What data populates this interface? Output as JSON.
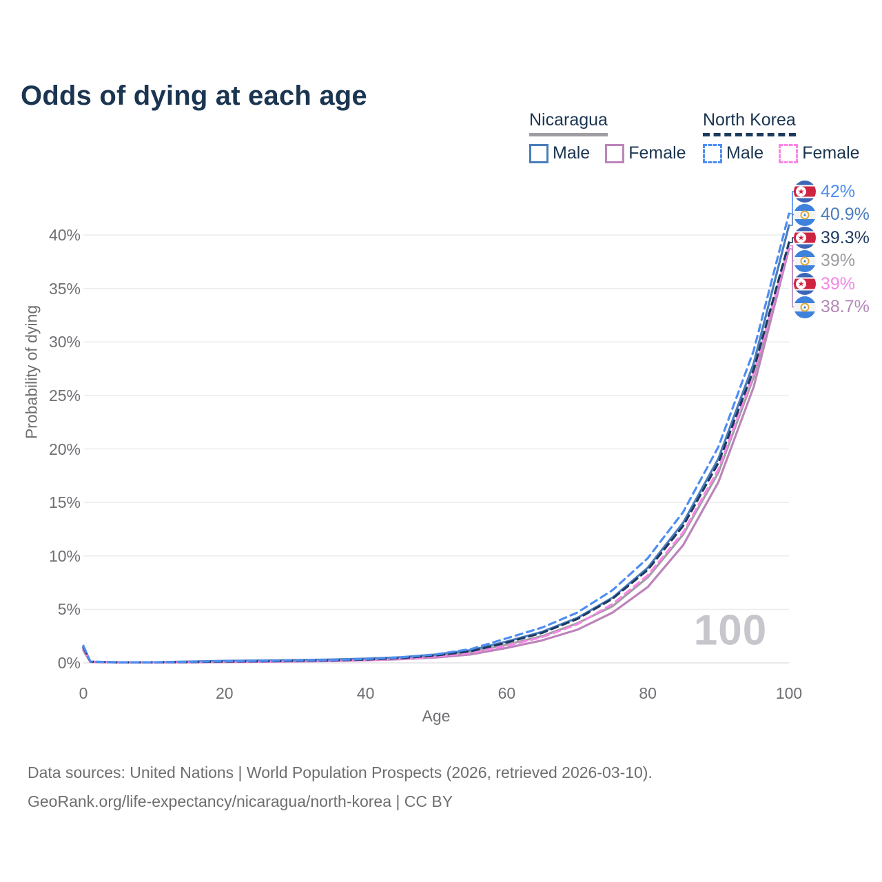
{
  "header": {
    "title": "Odds of dying at each age"
  },
  "legend": {
    "groups": [
      {
        "country": "Nicaragua",
        "line_style": "solid",
        "items": [
          {
            "label": "Male",
            "color": "#4a7dba"
          },
          {
            "label": "Female",
            "color": "#bc84ba"
          }
        ]
      },
      {
        "country": "North Korea",
        "line_style": "dashed",
        "items": [
          {
            "label": "Male",
            "color": "#4e8df2"
          },
          {
            "label": "Female",
            "color": "#fa86e6"
          }
        ]
      }
    ]
  },
  "chart_data": {
    "type": "line",
    "title": "Odds of dying at each age",
    "xlabel": "Age",
    "ylabel": "Probability of dying",
    "xlim": [
      0,
      100
    ],
    "ylim": [
      0,
      42
    ],
    "x_tick_values": [
      0,
      20,
      40,
      60,
      80,
      100
    ],
    "x_tick_labels": [
      "0",
      "20",
      "40",
      "60",
      "80",
      "100"
    ],
    "y_tick_values": [
      0,
      5,
      10,
      15,
      20,
      25,
      30,
      35,
      40
    ],
    "y_tick_labels": [
      "0%",
      "5%",
      "10%",
      "15%",
      "20%",
      "25%",
      "30%",
      "35%",
      "40%"
    ],
    "grid": true,
    "legend_position": "top-right",
    "watermark": "100",
    "ages": [
      0,
      1,
      5,
      10,
      15,
      20,
      25,
      30,
      35,
      40,
      45,
      50,
      55,
      60,
      65,
      70,
      75,
      80,
      85,
      90,
      95,
      100
    ],
    "series": [
      {
        "name": "Nicaragua Total",
        "key": "nic_total",
        "country": "Nicaragua",
        "sex": "Total",
        "color": "#9e9ea3",
        "dash": false,
        "values": [
          1.3,
          0.1,
          0.05,
          0.05,
          0.09,
          0.14,
          0.16,
          0.19,
          0.24,
          0.31,
          0.43,
          0.64,
          1.0,
          1.7,
          2.5,
          3.7,
          5.3,
          8.0,
          12.0,
          17.8,
          26.7,
          39.0
        ]
      },
      {
        "name": "Nicaragua Female",
        "key": "nic_female",
        "country": "Nicaragua",
        "sex": "Female",
        "color": "#bc84ba",
        "dash": false,
        "values": [
          1.15,
          0.09,
          0.04,
          0.04,
          0.06,
          0.08,
          0.1,
          0.13,
          0.17,
          0.24,
          0.34,
          0.5,
          0.8,
          1.4,
          2.1,
          3.1,
          4.7,
          7.1,
          11.0,
          16.9,
          25.8,
          38.7
        ]
      },
      {
        "name": "Nicaragua Male",
        "key": "nic_male",
        "country": "Nicaragua",
        "sex": "Male",
        "color": "#4a7dba",
        "dash": false,
        "values": [
          1.5,
          0.11,
          0.06,
          0.06,
          0.12,
          0.19,
          0.22,
          0.26,
          0.31,
          0.39,
          0.53,
          0.78,
          1.2,
          2.0,
          2.9,
          4.2,
          6.1,
          8.9,
          13.1,
          19.1,
          28.0,
          40.9
        ]
      },
      {
        "name": "North Korea Female",
        "key": "nk_female",
        "country": "North Korea",
        "sex": "Female",
        "color": "#fa86e6",
        "dash": true,
        "values": [
          1.3,
          0.1,
          0.05,
          0.04,
          0.07,
          0.09,
          0.11,
          0.14,
          0.19,
          0.26,
          0.38,
          0.58,
          0.95,
          1.6,
          2.4,
          3.6,
          5.5,
          8.2,
          12.2,
          18.1,
          27.0,
          39.0
        ]
      },
      {
        "name": "North Korea Total",
        "key": "nk_total",
        "country": "North Korea",
        "sex": "Total",
        "color": "#1d3a5f",
        "dash": true,
        "values": [
          1.45,
          0.11,
          0.05,
          0.05,
          0.08,
          0.12,
          0.15,
          0.18,
          0.23,
          0.31,
          0.45,
          0.69,
          1.1,
          1.9,
          2.8,
          4.1,
          6.0,
          8.7,
          12.8,
          18.7,
          27.4,
          39.3
        ]
      },
      {
        "name": "North Korea Male",
        "key": "nk_male",
        "country": "North Korea",
        "sex": "Male",
        "color": "#4e8df2",
        "dash": true,
        "values": [
          1.6,
          0.12,
          0.06,
          0.06,
          0.1,
          0.16,
          0.19,
          0.22,
          0.27,
          0.36,
          0.52,
          0.8,
          1.3,
          2.3,
          3.3,
          4.7,
          6.8,
          9.8,
          14.1,
          20.2,
          29.2,
          42.0
        ]
      }
    ],
    "end_labels": [
      {
        "series_key": "nk_male",
        "flag": "north-korea",
        "text": "42%",
        "color": "#4c8cf0"
      },
      {
        "series_key": "nic_male",
        "flag": "nicaragua",
        "text": "40.9%",
        "color": "#4a7dbd"
      },
      {
        "series_key": "nk_total",
        "flag": "north-korea",
        "text": "39.3%",
        "color": "#1d3a5f"
      },
      {
        "series_key": "nic_total",
        "flag": "nicaragua",
        "text": "39%",
        "color": "#9b9ba0"
      },
      {
        "series_key": "nk_female",
        "flag": "north-korea",
        "text": "39%",
        "color": "#f287e2"
      },
      {
        "series_key": "nic_female",
        "flag": "nicaragua",
        "text": "38.7%",
        "color": "#b288b8"
      }
    ]
  },
  "footer": {
    "line1": "Data sources: United Nations | World Population Prospects (2026, retrieved 2026-03-10).",
    "line2": "GeoRank.org/life-expectancy/nicaragua/north-korea | CC BY"
  },
  "colors": {
    "title": "#1b3551",
    "tick_text": "#6f6f74",
    "gridline": "#ececec",
    "baseline": "#e2e2e6",
    "watermark": "#c7c6cc",
    "footer_text": "#6e6e6e"
  }
}
